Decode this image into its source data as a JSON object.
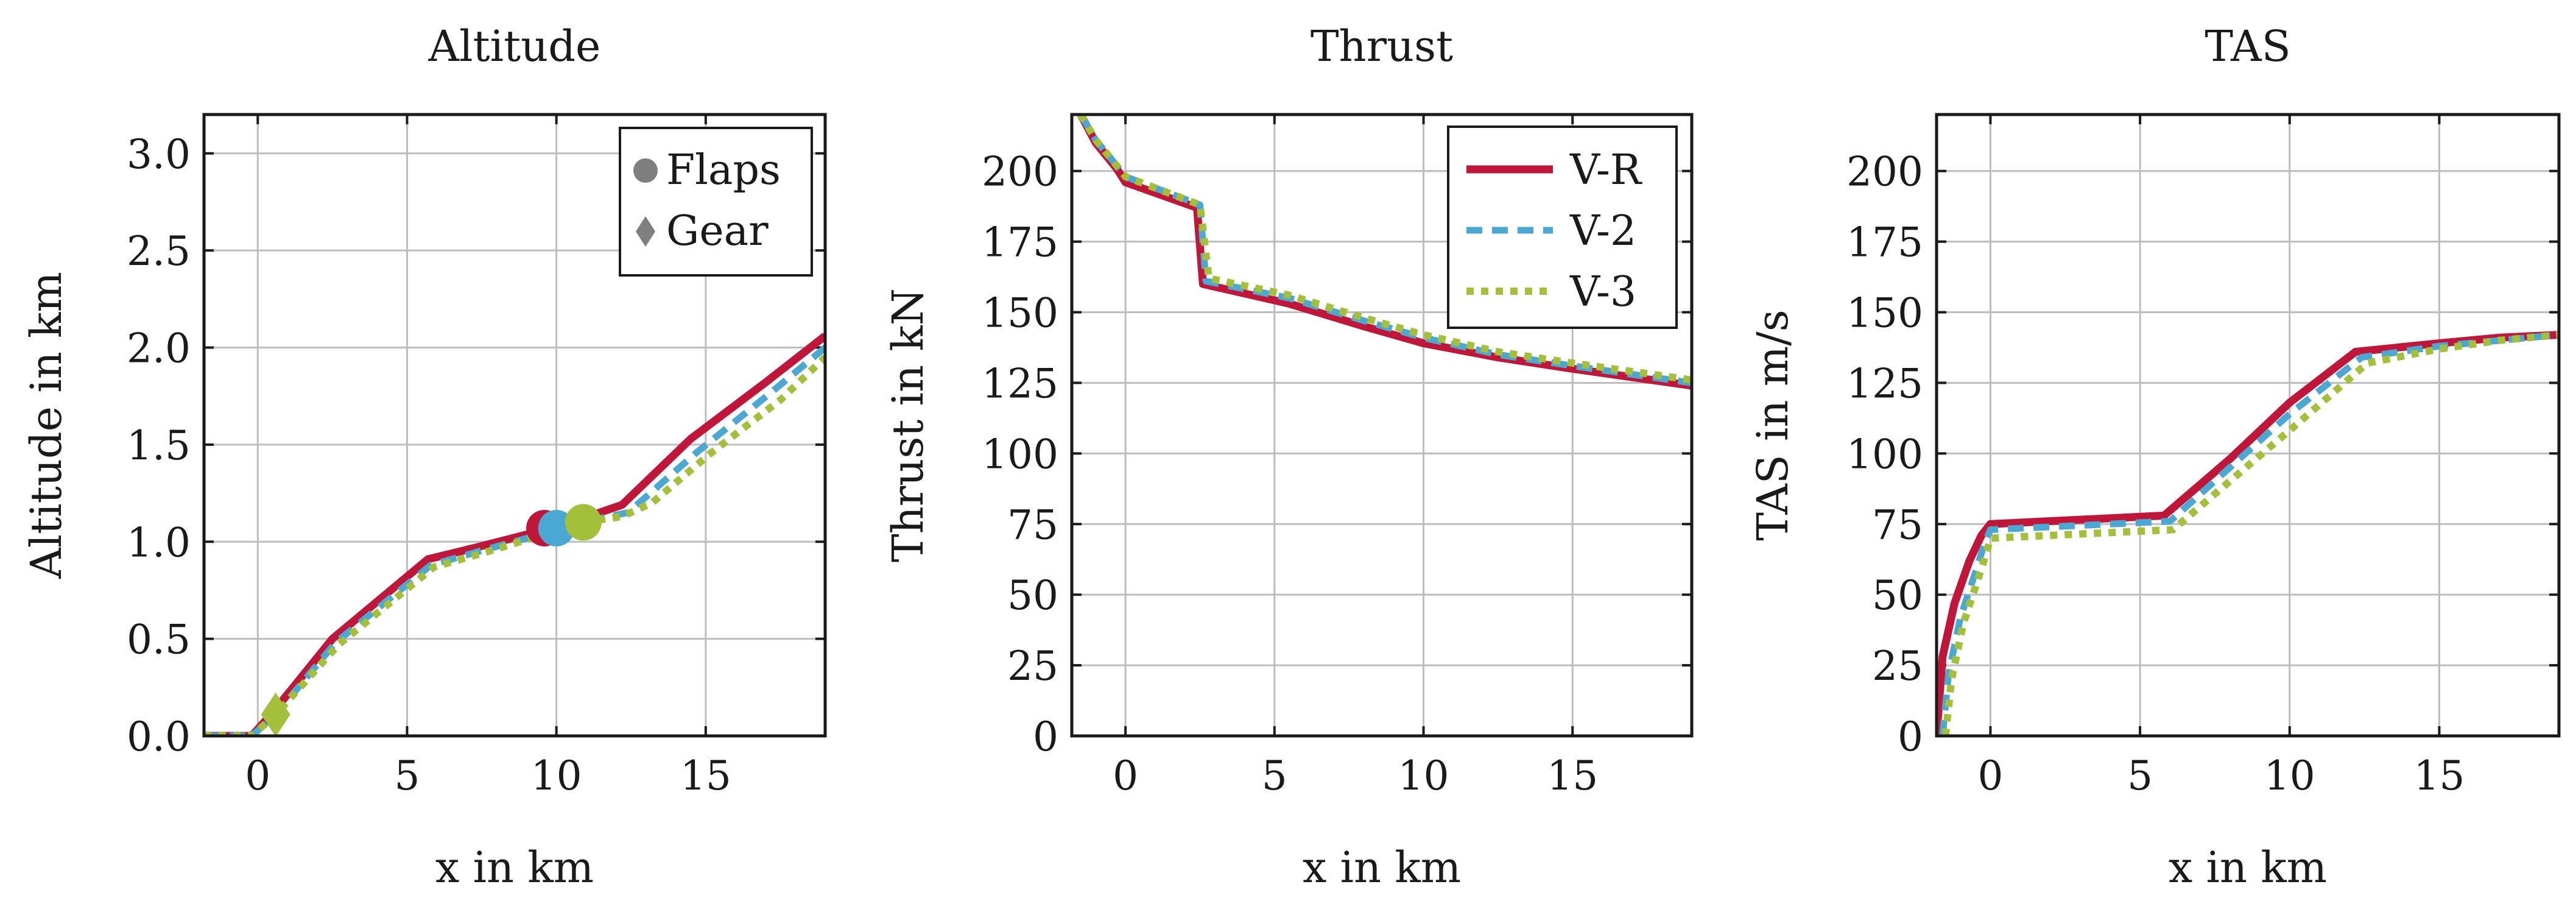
{
  "chart_data": [
    {
      "type": "line",
      "title": "Altitude",
      "xlabel": "x in km",
      "ylabel": "Altitude in km",
      "xlim": [
        -1.8,
        19
      ],
      "ylim": [
        0,
        3.2
      ],
      "xticks": [
        0,
        5,
        10,
        15
      ],
      "yticks": [
        0,
        0.5,
        1,
        1.5,
        2,
        2.5,
        3
      ],
      "ytick_labels": [
        "0.0",
        "0.5",
        "1.0",
        "1.5",
        "2.0",
        "2.5",
        "3.0"
      ],
      "grid": true,
      "series": [
        {
          "name": "V-R",
          "x": [
            -1.8,
            -0.2,
            0.5,
            2.5,
            5.7,
            7.3,
            9.6,
            10.5,
            12.2,
            14.5,
            17,
            19
          ],
          "y": [
            0,
            0,
            0.12,
            0.5,
            0.91,
            0.97,
            1.06,
            1.1,
            1.19,
            1.53,
            1.82,
            2.06
          ]
        },
        {
          "name": "V-2",
          "x": [
            -1.8,
            -0.2,
            0.6,
            2.6,
            5.8,
            7.4,
            10,
            10.8,
            12.4,
            14.7,
            17.2,
            19
          ],
          "y": [
            0,
            0,
            0.11,
            0.48,
            0.88,
            0.95,
            1.06,
            1.1,
            1.15,
            1.46,
            1.77,
            2.0
          ]
        },
        {
          "name": "V-3",
          "x": [
            -1.8,
            -0.2,
            0.6,
            2.7,
            5.9,
            7.5,
            10.9,
            12.2,
            13.2,
            15.2,
            17.5,
            19
          ],
          "y": [
            0,
            0,
            0.11,
            0.47,
            0.87,
            0.94,
            1.1,
            1.13,
            1.2,
            1.46,
            1.73,
            1.95
          ]
        }
      ],
      "markers": [
        {
          "series": "V-R",
          "type": "Flaps",
          "x": 9.6,
          "y": 1.07
        },
        {
          "series": "V-2",
          "type": "Flaps",
          "x": 10.0,
          "y": 1.07
        },
        {
          "series": "V-3",
          "type": "Flaps",
          "x": 10.9,
          "y": 1.1
        },
        {
          "series": "V-3",
          "type": "Gear",
          "x": 0.6,
          "y": 0.11
        }
      ],
      "legend": {
        "position": "top-right",
        "entries": [
          "Flaps",
          "Gear"
        ]
      }
    },
    {
      "type": "line",
      "title": "Thrust",
      "xlabel": "x in km",
      "ylabel": "Thrust in kN",
      "xlim": [
        -1.8,
        19
      ],
      "ylim": [
        0,
        220
      ],
      "xticks": [
        0,
        5,
        10,
        15
      ],
      "yticks": [
        0,
        25,
        50,
        75,
        100,
        125,
        150,
        175,
        200
      ],
      "ytick_labels": [
        "0",
        "25",
        "50",
        "75",
        "100",
        "125",
        "150",
        "175",
        "200"
      ],
      "grid": true,
      "series": [
        {
          "name": "V-R",
          "x": [
            -1.5,
            -1.0,
            -0.3,
            0,
            2.4,
            2.6,
            5.5,
            8,
            10,
            12.5,
            15,
            17,
            19
          ],
          "y": [
            220,
            210,
            201,
            196,
            187,
            160,
            153,
            145,
            139,
            134,
            130,
            127,
            124
          ]
        },
        {
          "name": "V-2",
          "x": [
            -1.5,
            -1.0,
            -0.3,
            0,
            2.5,
            2.7,
            5.5,
            8,
            10,
            12.5,
            15,
            17,
            19
          ],
          "y": [
            220,
            211,
            202,
            198,
            188,
            161,
            155,
            147,
            141,
            135,
            131,
            128,
            125
          ]
        },
        {
          "name": "V-3",
          "x": [
            -1.5,
            -1.0,
            -0.3,
            0,
            2.5,
            2.8,
            5.5,
            8,
            10,
            12.5,
            15,
            17,
            19
          ],
          "y": [
            220,
            211,
            202,
            198,
            188,
            162,
            156,
            148,
            142,
            136,
            132,
            129,
            126
          ]
        }
      ],
      "legend": {
        "position": "top-right",
        "entries": [
          "V-R",
          "V-2",
          "V-3"
        ]
      }
    },
    {
      "type": "line",
      "title": "TAS",
      "xlabel": "x in km",
      "ylabel": "TAS in m/s",
      "xlim": [
        -1.8,
        19
      ],
      "ylim": [
        0,
        220
      ],
      "xticks": [
        0,
        5,
        10,
        15
      ],
      "yticks": [
        0,
        25,
        50,
        75,
        100,
        125,
        150,
        175,
        200
      ],
      "ytick_labels": [
        "0",
        "25",
        "50",
        "75",
        "100",
        "125",
        "150",
        "175",
        "200"
      ],
      "grid": true,
      "series": [
        {
          "name": "V-R",
          "x": [
            -1.8,
            -1.6,
            -1.2,
            -0.7,
            -0.3,
            0,
            5.8,
            8,
            10,
            12.2,
            15,
            17,
            19
          ],
          "y": [
            0,
            28,
            47,
            62,
            71,
            75,
            78,
            98,
            118,
            136,
            139,
            141,
            142
          ]
        },
        {
          "name": "V-2",
          "x": [
            -1.6,
            -1.4,
            -1.0,
            -0.5,
            -0.2,
            0,
            6.0,
            8,
            10,
            12.4,
            15,
            17,
            19
          ],
          "y": [
            0,
            22,
            42,
            58,
            68,
            73,
            76,
            95,
            114,
            134,
            138,
            140,
            142
          ]
        },
        {
          "name": "V-3",
          "x": [
            -1.5,
            -1.3,
            -0.9,
            -0.4,
            -0.1,
            0,
            6.1,
            8.2,
            10.2,
            12.6,
            15,
            17,
            19
          ],
          "y": [
            0,
            20,
            40,
            56,
            66,
            70,
            73,
            92,
            110,
            132,
            137,
            140,
            142
          ]
        }
      ]
    }
  ],
  "colors": {
    "V-R": "#c0163a",
    "V-2": "#4aa8d2",
    "V-3": "#a4c03a",
    "marker_legend": "#7f7f7f"
  }
}
